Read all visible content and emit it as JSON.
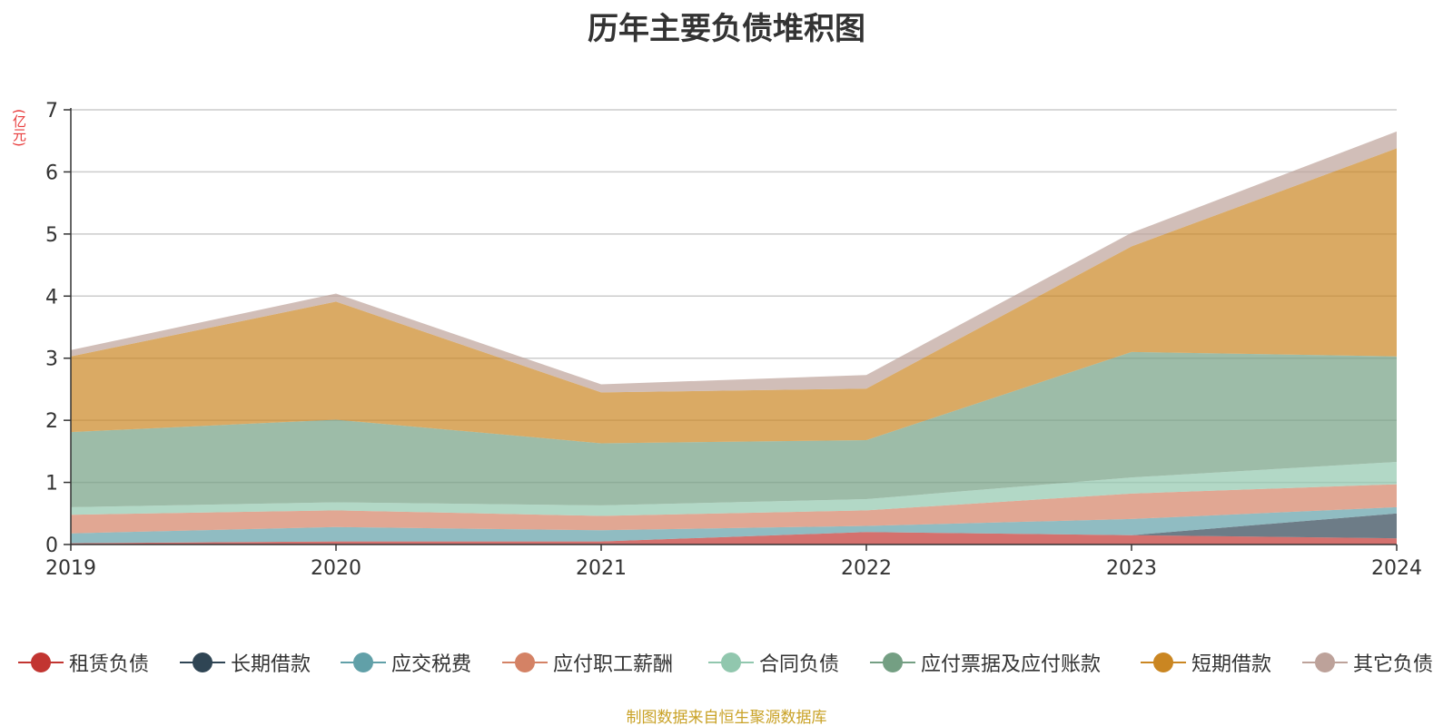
{
  "title": "历年主要负债堆积图",
  "unit": "(亿元)",
  "source": "制图数据来自恒生聚源数据库",
  "chart_data": {
    "type": "area",
    "stacked": true,
    "title": "历年主要负债堆积图",
    "ylabel": "(亿元)",
    "categories": [
      "2019",
      "2020",
      "2021",
      "2022",
      "2023",
      "2024"
    ],
    "y_ticks": [
      "0",
      "1",
      "2",
      "3",
      "4",
      "5",
      "6",
      "7"
    ],
    "ylim": [
      0,
      7
    ],
    "grid": true,
    "legend_position": "bottom",
    "series": [
      {
        "name": "租赁负债",
        "color": "#c23531",
        "values": [
          0.02,
          0.05,
          0.05,
          0.2,
          0.15,
          0.1
        ]
      },
      {
        "name": "长期借款",
        "color": "#2f4554",
        "values": [
          0,
          0,
          0,
          0,
          0,
          0.4
        ]
      },
      {
        "name": "应交税费",
        "color": "#61a0a8",
        "values": [
          0.16,
          0.23,
          0.18,
          0.1,
          0.26,
          0.1
        ]
      },
      {
        "name": "应付职工薪酬",
        "color": "#d48265",
        "values": [
          0.3,
          0.27,
          0.23,
          0.25,
          0.41,
          0.37
        ]
      },
      {
        "name": "合同负债",
        "color": "#91c7ae",
        "values": [
          0.12,
          0.13,
          0.17,
          0.18,
          0.26,
          0.36
        ]
      },
      {
        "name": "应付票据及应付账款",
        "color": "#749f83",
        "values": [
          1.21,
          1.33,
          1.0,
          0.95,
          2.02,
          1.7
        ]
      },
      {
        "name": "短期借款",
        "color": "#ca8622",
        "values": [
          1.22,
          1.9,
          0.82,
          0.83,
          1.7,
          3.35
        ]
      },
      {
        "name": "其它负债",
        "color": "#bda29a",
        "values": [
          0.1,
          0.13,
          0.13,
          0.22,
          0.22,
          0.27
        ]
      }
    ]
  }
}
